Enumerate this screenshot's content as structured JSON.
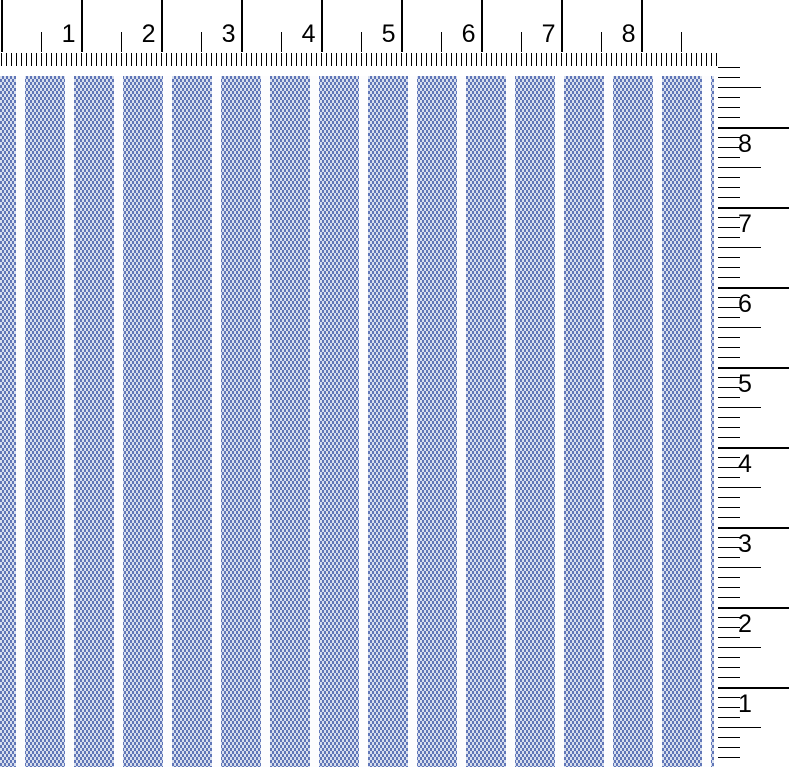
{
  "top_ruler": {
    "unit": "inch",
    "numbers": [
      "1",
      "2",
      "3",
      "4",
      "5",
      "6",
      "7",
      "8"
    ],
    "tick_color": "#000000",
    "number_color": "#000000",
    "background": "#ffffff"
  },
  "right_ruler": {
    "unit": "inch",
    "numbers": [
      "8",
      "7",
      "6",
      "5",
      "4",
      "3",
      "2",
      "1"
    ],
    "tick_color": "#000000",
    "number_color": "#000000",
    "background": "#ffffff"
  },
  "fabric": {
    "colors": {
      "weave_blue": "#6076b8",
      "weave_light": "#d8dfee",
      "stripe_gap_white": "#fdfdfe"
    }
  }
}
